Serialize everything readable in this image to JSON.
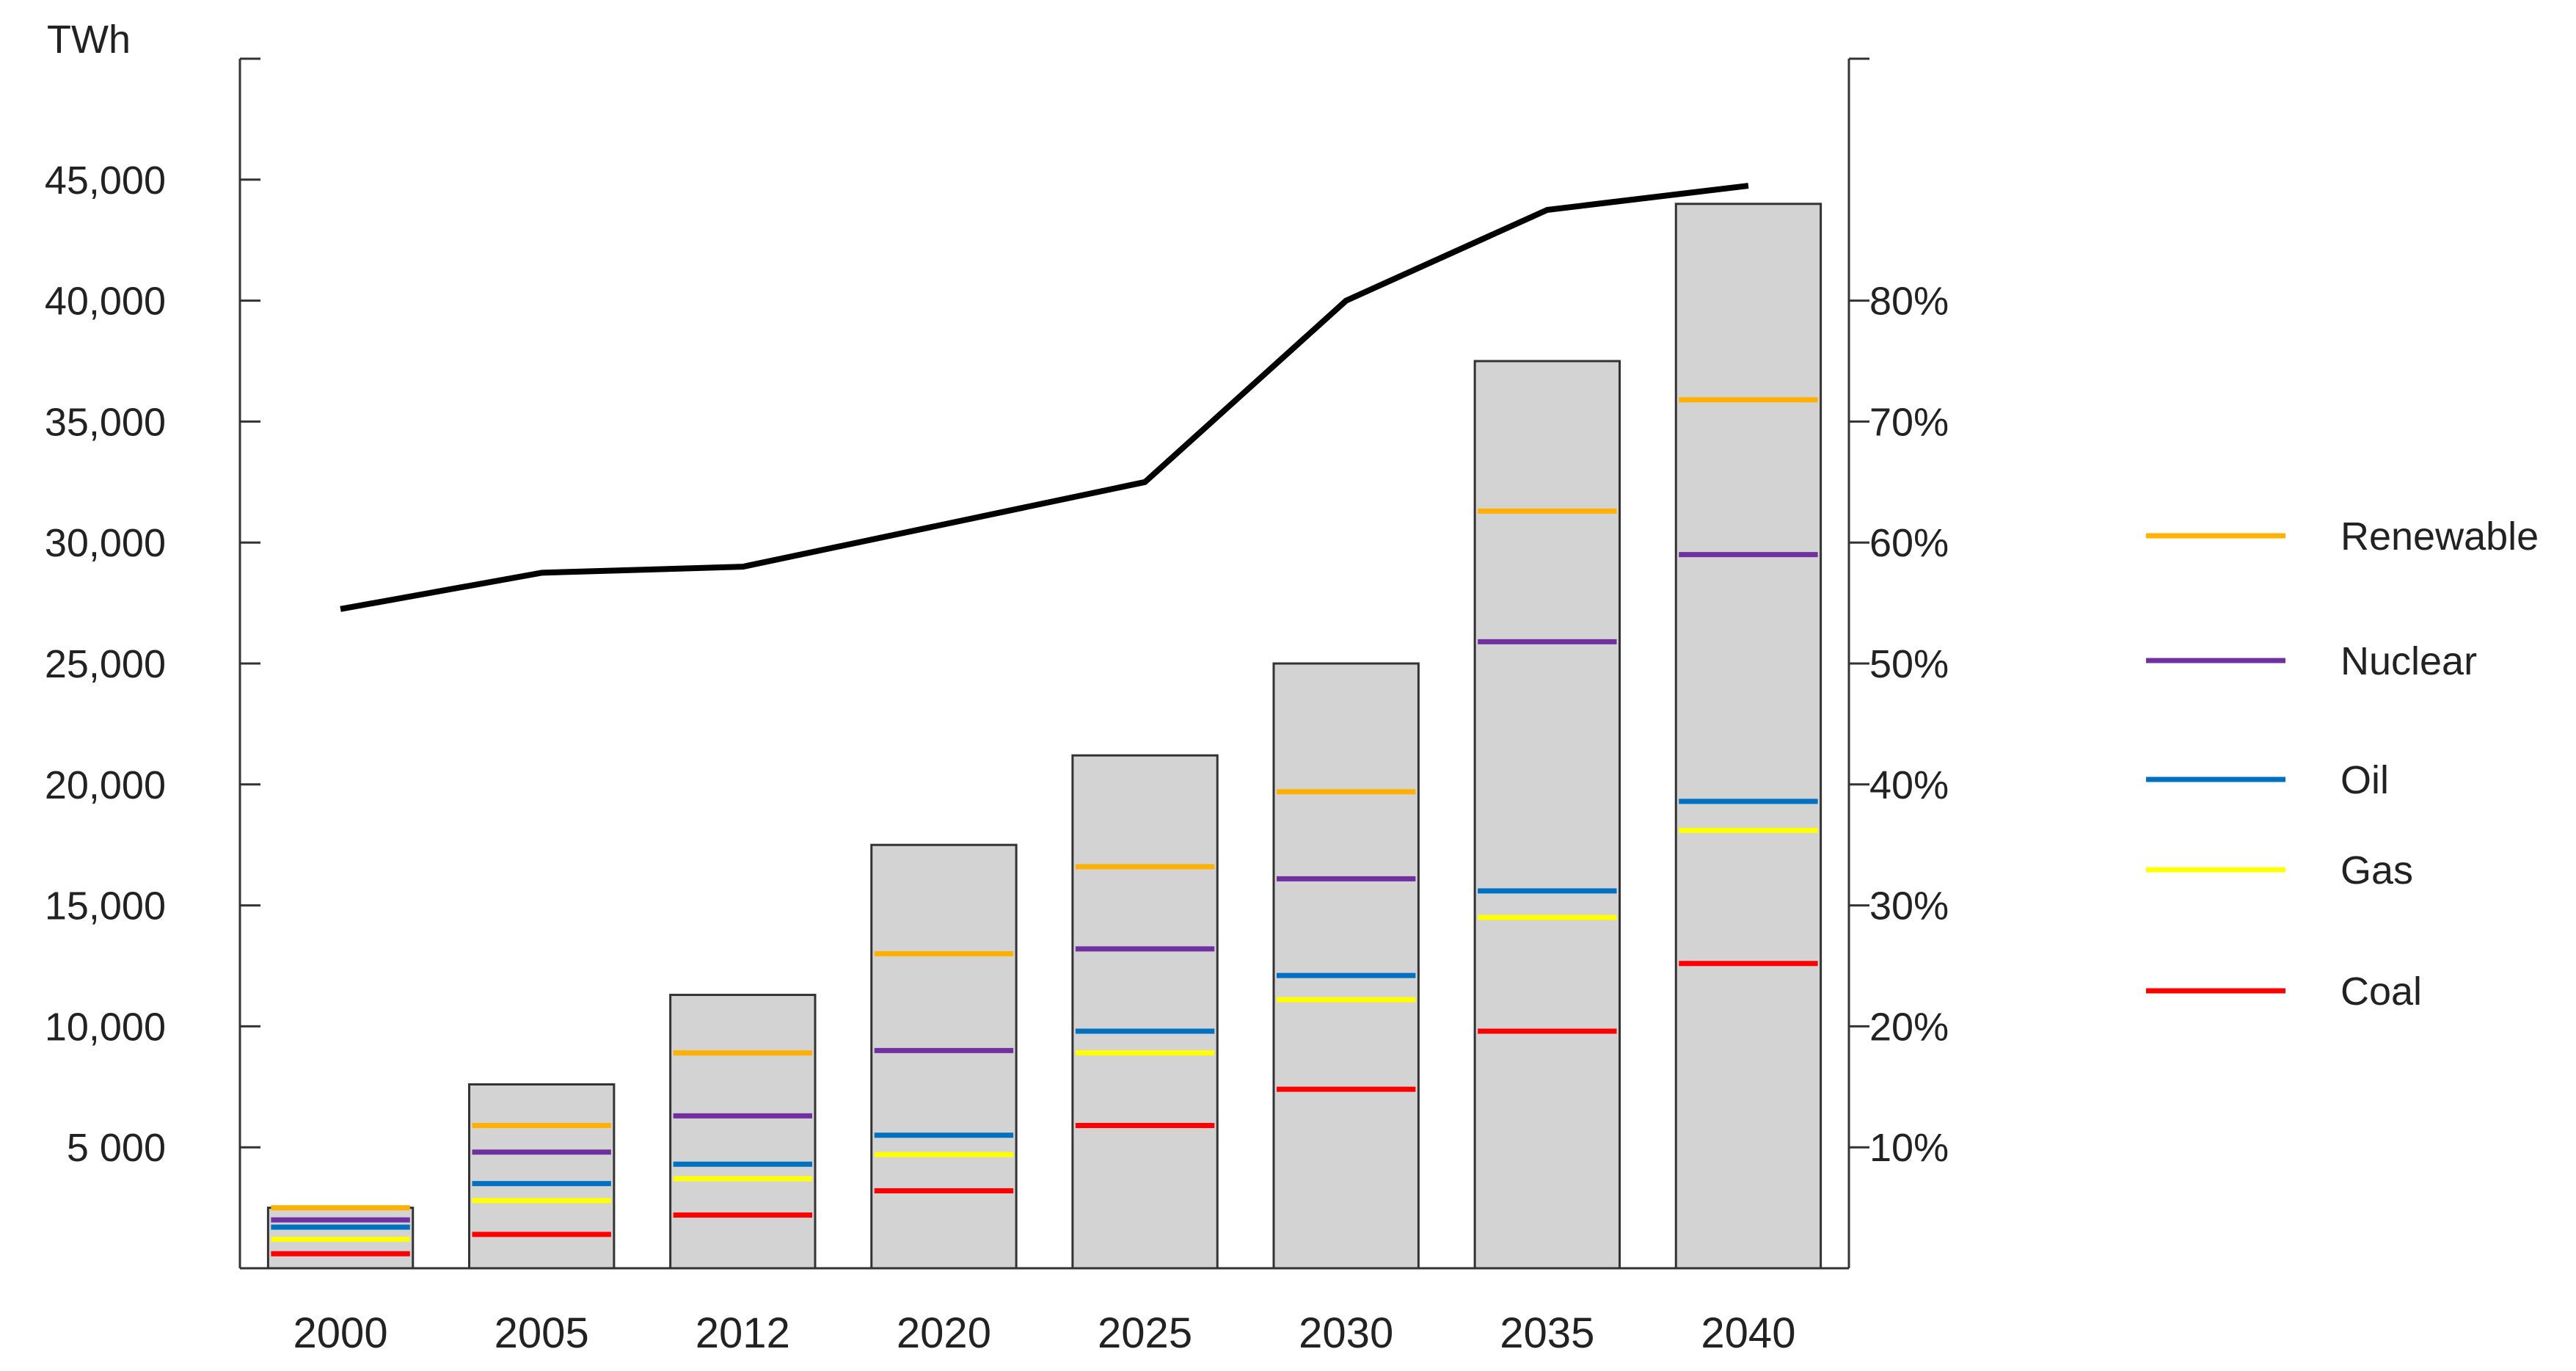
{
  "chart_data": {
    "type": "bar",
    "y_unit_label": "TWh",
    "categories": [
      "2000",
      "2005",
      "2012",
      "2020",
      "2025",
      "2030",
      "2035",
      "2040"
    ],
    "left_axis": {
      "ylim": [
        0,
        50000
      ],
      "ticks": [
        5000,
        10000,
        15000,
        20000,
        25000,
        30000,
        35000,
        40000,
        45000
      ],
      "tick_labels": [
        "5 000",
        "10,000",
        "15,000",
        "20,000",
        "25,000",
        "30,000",
        "35,000",
        "40,000",
        "45,000"
      ]
    },
    "right_axis": {
      "ylim": [
        0,
        100
      ],
      "ticks": [
        10,
        20,
        30,
        40,
        50,
        60,
        70,
        80
      ],
      "tick_labels": [
        "10%",
        "20%",
        "30%",
        "40%",
        "50%",
        "60%",
        "70%",
        "80%"
      ]
    },
    "bars": {
      "color": "#d3d3d3",
      "values": [
        2500,
        7600,
        11300,
        17500,
        21200,
        25000,
        37500,
        44000
      ]
    },
    "line_series": {
      "axis": "right",
      "color": "#000000",
      "values": [
        54.5,
        57.5,
        58,
        61.5,
        65,
        80,
        87.5,
        89.5
      ]
    },
    "level_series": [
      {
        "name": "Renewable",
        "color": "#ffb000",
        "values": [
          2500,
          5900,
          8900,
          13000,
          16600,
          19700,
          31300,
          35900
        ]
      },
      {
        "name": "Nuclear",
        "color": "#7030a0",
        "values": [
          2000,
          4800,
          6300,
          9000,
          13200,
          16100,
          25900,
          29500
        ]
      },
      {
        "name": "Oil",
        "color": "#0070c0",
        "values": [
          1700,
          3500,
          4300,
          5500,
          9800,
          12100,
          15600,
          19300
        ]
      },
      {
        "name": "Gas",
        "color": "#ffff00",
        "values": [
          1200,
          2800,
          3700,
          4700,
          8900,
          11100,
          14500,
          18100
        ]
      },
      {
        "name": "Coal",
        "color": "#ff0000",
        "values": [
          600,
          1400,
          2200,
          3200,
          5900,
          7400,
          9800,
          12600
        ]
      }
    ],
    "legend": {
      "placement": "right",
      "entries": [
        "Renewable",
        "Nuclear",
        "Oil",
        "Gas",
        "Coal"
      ]
    },
    "grid": false
  }
}
